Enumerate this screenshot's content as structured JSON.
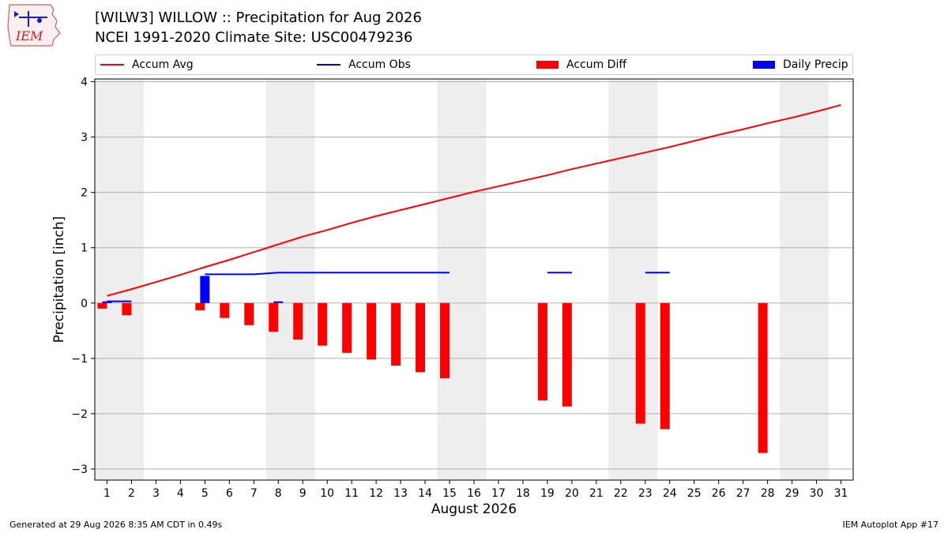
{
  "header": {
    "title": "[WILW3] WILLOW :: Precipitation for Aug 2026",
    "subtitle": "NCEI 1991-2020 Climate Site: USC00479236"
  },
  "logo": {
    "text": "IEM"
  },
  "footer": {
    "generated": "Generated at 29 Aug 2026 8:35 AM CDT in 0.49s",
    "app": "IEM Autoplot App #17"
  },
  "chart_data": {
    "type": "bar",
    "title": "[WILW3] WILLOW :: Precipitation for Aug 2026",
    "subtitle": "NCEI 1991-2020 Climate Site: USC00479236",
    "xlabel": "August 2026",
    "ylabel": "Precipitation [inch]",
    "xlim": [
      0.5,
      31.5
    ],
    "ylim": [
      -3.2,
      4.05
    ],
    "x_ticks": [
      "1",
      "2",
      "3",
      "4",
      "5",
      "6",
      "7",
      "8",
      "9",
      "10",
      "11",
      "12",
      "13",
      "14",
      "15",
      "16",
      "17",
      "18",
      "19",
      "20",
      "21",
      "22",
      "23",
      "24",
      "25",
      "26",
      "27",
      "28",
      "29",
      "30",
      "31"
    ],
    "y_ticks": [
      -3,
      -2,
      -1,
      0,
      1,
      2,
      3,
      4
    ],
    "y_tick_labels": [
      "−3",
      "−2",
      "−1",
      "0",
      "1",
      "2",
      "3",
      "4"
    ],
    "grid": "horizontal",
    "weekend_shading": [
      [
        0.5,
        2.5
      ],
      [
        7.5,
        9.5
      ],
      [
        14.5,
        16.5
      ],
      [
        21.5,
        23.5
      ],
      [
        28.5,
        30.5
      ]
    ],
    "legend_position": "top",
    "legend": [
      {
        "name": "Accum Avg",
        "kind": "line",
        "color": "#ff0000"
      },
      {
        "name": "Accum Obs",
        "kind": "line",
        "color": "#0000ff"
      },
      {
        "name": "Accum Diff",
        "kind": "bar",
        "color": "#ff0000"
      },
      {
        "name": "Daily Precip",
        "kind": "bar",
        "color": "#0000ff"
      }
    ],
    "series": [
      {
        "name": "Accum Avg",
        "kind": "line",
        "color": "#ff0000",
        "x": [
          1,
          2,
          3,
          4,
          5,
          6,
          7,
          8,
          9,
          10,
          11,
          12,
          13,
          14,
          15,
          16,
          17,
          18,
          19,
          20,
          21,
          22,
          23,
          24,
          25,
          26,
          27,
          28,
          29,
          30,
          31
        ],
        "values": [
          0.13,
          0.25,
          0.38,
          0.51,
          0.65,
          0.78,
          0.92,
          1.06,
          1.2,
          1.32,
          1.45,
          1.57,
          1.68,
          1.79,
          1.9,
          2.01,
          2.11,
          2.21,
          2.31,
          2.42,
          2.52,
          2.62,
          2.72,
          2.82,
          2.93,
          3.04,
          3.14,
          3.25,
          3.35,
          3.46,
          3.58
        ]
      },
      {
        "name": "Accum Obs",
        "kind": "step",
        "color": "#0000ff",
        "segments": [
          {
            "x": [
              1,
              2
            ],
            "values": [
              0.03,
              0.03
            ]
          },
          {
            "x": [
              5,
              6,
              7,
              8,
              9,
              10,
              11,
              12,
              13,
              14,
              15
            ],
            "values": [
              0.52,
              0.52,
              0.52,
              0.55,
              0.55,
              0.55,
              0.55,
              0.55,
              0.55,
              0.55,
              0.55
            ]
          },
          {
            "x": [
              19,
              20
            ],
            "values": [
              0.55,
              0.55
            ]
          },
          {
            "x": [
              23,
              24
            ],
            "values": [
              0.55,
              0.55
            ]
          }
        ]
      },
      {
        "name": "Accum Diff",
        "kind": "bar",
        "color": "#ff0000",
        "x": [
          1,
          2,
          5,
          6,
          7,
          8,
          9,
          10,
          11,
          12,
          13,
          14,
          15,
          19,
          20,
          23,
          24,
          28
        ],
        "values": [
          -0.1,
          -0.22,
          -0.13,
          -0.27,
          -0.4,
          -0.52,
          -0.66,
          -0.77,
          -0.9,
          -1.02,
          -1.13,
          -1.25,
          -1.36,
          -1.76,
          -1.87,
          -2.18,
          -2.28,
          -2.71
        ]
      },
      {
        "name": "Daily Precip",
        "kind": "bar",
        "color": "#0000ff",
        "x": [
          1,
          5,
          8
        ],
        "values": [
          0.03,
          0.49,
          0.03
        ]
      }
    ]
  }
}
